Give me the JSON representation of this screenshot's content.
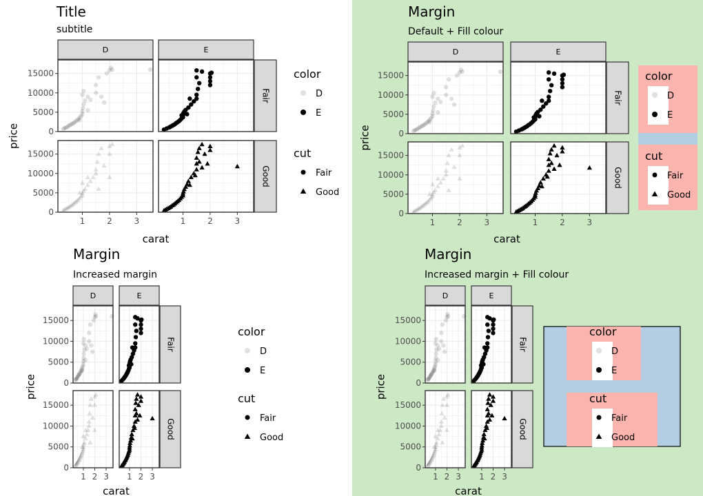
{
  "colors": {
    "background_green": "#cce8c5",
    "legend_blue": "#b3cde3",
    "legend_salmon": "#fbb4ae",
    "strip_fill": "#d9d9d9",
    "panel_border": "#333333",
    "grid_major": "#ebebeb",
    "point": "#000000"
  },
  "legend_labels": {
    "color_title": "color",
    "color_items": [
      "D",
      "E"
    ],
    "cut_title": "cut",
    "cut_items": [
      "Fair",
      "Good"
    ]
  },
  "chart_data": [
    {
      "type": "scatter",
      "title": "Title",
      "subtitle": "subtitle",
      "xlabel": "carat",
      "ylabel": "price",
      "facet_cols": [
        "D",
        "E"
      ],
      "facet_rows": [
        "Fair",
        "Good"
      ],
      "xlim": [
        0.1,
        3.6
      ],
      "ylim": [
        0,
        18500
      ],
      "xticks": [
        1,
        2,
        3
      ],
      "yticks": [
        0,
        5000,
        10000,
        15000
      ],
      "legend_position": "right",
      "legend_box_fill": "",
      "legend_fill": "",
      "background": "",
      "series": [
        {
          "name": "D",
          "alpha": 0.12
        },
        {
          "name": "E",
          "alpha": 1.0
        }
      ]
    },
    {
      "type": "scatter",
      "title": "Margin",
      "subtitle": "Default + Fill colour",
      "xlabel": "carat",
      "ylabel": "price",
      "facet_cols": [
        "D",
        "E"
      ],
      "facet_rows": [
        "Fair",
        "Good"
      ],
      "xlim": [
        0.1,
        3.6
      ],
      "ylim": [
        0,
        18500
      ],
      "xticks": [
        1,
        2,
        3
      ],
      "yticks": [
        0,
        5000,
        10000,
        15000
      ],
      "legend_position": "right",
      "legend_box_fill": "#b3cde3",
      "legend_fill": "#fbb4ae",
      "background": "#cce8c5",
      "series": [
        {
          "name": "D",
          "alpha": 0.12
        },
        {
          "name": "E",
          "alpha": 1.0
        }
      ]
    },
    {
      "type": "scatter",
      "title": "Margin",
      "subtitle": "Increased margin",
      "xlabel": "carat",
      "ylabel": "price",
      "facet_cols": [
        "D",
        "E"
      ],
      "facet_rows": [
        "Fair",
        "Good"
      ],
      "xlim": [
        0.1,
        3.6
      ],
      "ylim": [
        0,
        18500
      ],
      "xticks": [
        1,
        2,
        3
      ],
      "yticks": [
        0,
        5000,
        10000,
        15000
      ],
      "legend_position": "right",
      "legend_box_fill": "",
      "legend_fill": "",
      "background": "",
      "series": [
        {
          "name": "D",
          "alpha": 0.12
        },
        {
          "name": "E",
          "alpha": 1.0
        }
      ]
    },
    {
      "type": "scatter",
      "title": "Margin",
      "subtitle": "Increased margin + Fill colour",
      "xlabel": "carat",
      "ylabel": "price",
      "facet_cols": [
        "D",
        "E"
      ],
      "facet_rows": [
        "Fair",
        "Good"
      ],
      "xlim": [
        0.1,
        3.6
      ],
      "ylim": [
        0,
        18500
      ],
      "xticks": [
        1,
        2,
        3
      ],
      "yticks": [
        0,
        5000,
        10000,
        15000
      ],
      "legend_position": "right",
      "legend_box_fill": "#b3cde3",
      "legend_fill": "#fbb4ae",
      "background": "#cce8c5",
      "series": [
        {
          "name": "D",
          "alpha": 0.12
        },
        {
          "name": "E",
          "alpha": 1.0
        }
      ]
    }
  ],
  "facet_points": {
    "D_Fair": [
      [
        0.3,
        700
      ],
      [
        0.35,
        900
      ],
      [
        0.4,
        1000
      ],
      [
        0.45,
        1200
      ],
      [
        0.5,
        1500
      ],
      [
        0.55,
        1700
      ],
      [
        0.6,
        1900
      ],
      [
        0.65,
        2100
      ],
      [
        0.7,
        2300
      ],
      [
        0.75,
        2600
      ],
      [
        0.8,
        2900
      ],
      [
        0.85,
        3200
      ],
      [
        0.9,
        3600
      ],
      [
        0.95,
        4000
      ],
      [
        1.0,
        4500
      ],
      [
        1.0,
        5200
      ],
      [
        1.02,
        6000
      ],
      [
        1.05,
        7000
      ],
      [
        1.1,
        8000
      ],
      [
        1.0,
        9500
      ],
      [
        1.05,
        10500
      ],
      [
        1.2,
        9000
      ],
      [
        1.3,
        8200
      ],
      [
        1.5,
        10000
      ],
      [
        1.5,
        12000
      ],
      [
        1.6,
        14000
      ],
      [
        2.0,
        15800
      ],
      [
        2.05,
        16500
      ],
      [
        2.1,
        16000
      ],
      [
        1.7,
        9000
      ],
      [
        1.8,
        7500
      ],
      [
        1.9,
        15000
      ],
      [
        3.5,
        16000
      ],
      [
        1.2,
        5500
      ],
      [
        0.9,
        3000
      ]
    ],
    "E_Fair": [
      [
        0.3,
        500
      ],
      [
        0.4,
        800
      ],
      [
        0.5,
        1100
      ],
      [
        0.6,
        1500
      ],
      [
        0.7,
        1900
      ],
      [
        0.75,
        2200
      ],
      [
        0.8,
        2400
      ],
      [
        0.85,
        2700
      ],
      [
        0.9,
        3000
      ],
      [
        0.95,
        3400
      ],
      [
        1.0,
        3700
      ],
      [
        1.0,
        4200
      ],
      [
        1.02,
        4800
      ],
      [
        1.05,
        5200
      ],
      [
        1.1,
        5600
      ],
      [
        1.2,
        6200
      ],
      [
        1.3,
        7000
      ],
      [
        1.4,
        7800
      ],
      [
        1.5,
        8500
      ],
      [
        1.5,
        9500
      ],
      [
        1.55,
        11000
      ],
      [
        1.6,
        12500
      ],
      [
        1.5,
        14000
      ],
      [
        1.5,
        15800
      ],
      [
        1.7,
        15500
      ],
      [
        2.0,
        15000
      ],
      [
        2.0,
        14000
      ],
      [
        2.0,
        13000
      ],
      [
        2.0,
        12000
      ],
      [
        2.05,
        15200
      ],
      [
        1.25,
        8500
      ],
      [
        1.15,
        4500
      ],
      [
        0.65,
        1700
      ],
      [
        0.55,
        1300
      ],
      [
        0.95,
        4200
      ]
    ],
    "D_Good": [
      [
        0.3,
        500
      ],
      [
        0.35,
        700
      ],
      [
        0.4,
        900
      ],
      [
        0.45,
        1100
      ],
      [
        0.5,
        1300
      ],
      [
        0.55,
        1500
      ],
      [
        0.6,
        1800
      ],
      [
        0.65,
        2000
      ],
      [
        0.7,
        2300
      ],
      [
        0.75,
        2600
      ],
      [
        0.8,
        2900
      ],
      [
        0.85,
        3200
      ],
      [
        0.9,
        3600
      ],
      [
        0.95,
        4000
      ],
      [
        1.0,
        4400
      ],
      [
        1.0,
        4900
      ],
      [
        1.05,
        5500
      ],
      [
        1.1,
        6000
      ],
      [
        1.2,
        7000
      ],
      [
        1.3,
        8000
      ],
      [
        1.4,
        9000
      ],
      [
        1.5,
        10000
      ],
      [
        1.5,
        11000
      ],
      [
        1.55,
        13000
      ],
      [
        1.6,
        15000
      ],
      [
        1.7,
        16500
      ],
      [
        2.0,
        17000
      ],
      [
        2.1,
        17500
      ],
      [
        2.0,
        15000
      ],
      [
        1.8,
        12000
      ],
      [
        1.2,
        9000
      ],
      [
        1.0,
        7500
      ],
      [
        0.9,
        5000
      ],
      [
        1.6,
        6000
      ],
      [
        2.0,
        9000
      ]
    ],
    "E_Good": [
      [
        0.3,
        400
      ],
      [
        0.35,
        600
      ],
      [
        0.4,
        800
      ],
      [
        0.45,
        1000
      ],
      [
        0.5,
        1200
      ],
      [
        0.55,
        1400
      ],
      [
        0.6,
        1700
      ],
      [
        0.65,
        1900
      ],
      [
        0.7,
        2200
      ],
      [
        0.75,
        2500
      ],
      [
        0.8,
        2800
      ],
      [
        0.85,
        3100
      ],
      [
        0.9,
        3500
      ],
      [
        0.95,
        3900
      ],
      [
        1.0,
        4300
      ],
      [
        1.0,
        4800
      ],
      [
        1.02,
        5300
      ],
      [
        1.05,
        5900
      ],
      [
        1.1,
        6500
      ],
      [
        1.15,
        7200
      ],
      [
        1.2,
        8000
      ],
      [
        1.3,
        9000
      ],
      [
        1.4,
        10000
      ],
      [
        1.5,
        11000
      ],
      [
        1.5,
        12500
      ],
      [
        1.5,
        14000
      ],
      [
        1.55,
        15500
      ],
      [
        1.6,
        16500
      ],
      [
        1.7,
        17500
      ],
      [
        2.0,
        17000
      ],
      [
        2.0,
        16000
      ],
      [
        1.8,
        15000
      ],
      [
        1.6,
        13000
      ],
      [
        1.25,
        7000
      ],
      [
        1.45,
        9500
      ],
      [
        1.7,
        11500
      ],
      [
        1.9,
        12500
      ],
      [
        3.0,
        11800
      ]
    ]
  }
}
